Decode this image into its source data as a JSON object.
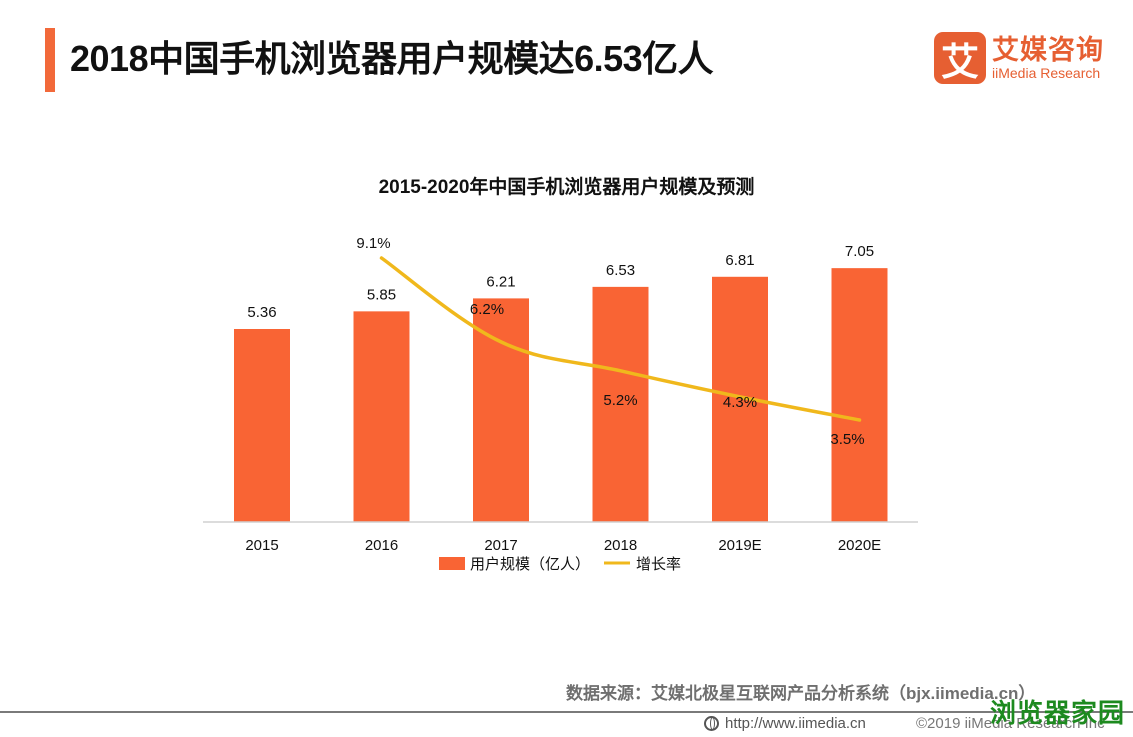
{
  "header": {
    "title": "2018中国手机浏览器用户规模达6.53亿人",
    "accent_color": "#f2693a"
  },
  "logo": {
    "mark": "艾",
    "cn": "艾媒咨询",
    "en": "iiMedia Research",
    "color": "#e65f32"
  },
  "chart_data": {
    "type": "bar",
    "title": "2015-2020年中国手机浏览器用户规模及预测",
    "categories": [
      "2015",
      "2016",
      "2017",
      "2018",
      "2019E",
      "2020E"
    ],
    "series": [
      {
        "name": "用户规模（亿人）",
        "type": "bar",
        "color": "#f96434",
        "values": [
          5.36,
          5.85,
          6.21,
          6.53,
          6.81,
          7.05
        ],
        "labels": [
          "5.36",
          "5.85",
          "6.21",
          "6.53",
          "6.81",
          "7.05"
        ]
      },
      {
        "name": "增长率",
        "type": "line",
        "color": "#f0b81c",
        "values": [
          null,
          9.1,
          6.2,
          5.2,
          4.3,
          3.5
        ],
        "labels": [
          "",
          "9.1%",
          "6.2%",
          "5.2%",
          "4.3%",
          "3.5%"
        ],
        "unit": "%"
      }
    ],
    "xlabel": "",
    "ylabel": "",
    "ylim_bar": [
      0,
      7.05
    ],
    "ylim_line": [
      3.5,
      9.1
    ],
    "grid": false,
    "legend_position": "bottom"
  },
  "footer": {
    "source": "数据来源：艾媒北极星互联网产品分析系统（bjx.iimedia.cn）",
    "url": "http://www.iimedia.cn",
    "copyright": "©2019  iiMedia Research Inc",
    "watermark": "浏览器家园"
  }
}
